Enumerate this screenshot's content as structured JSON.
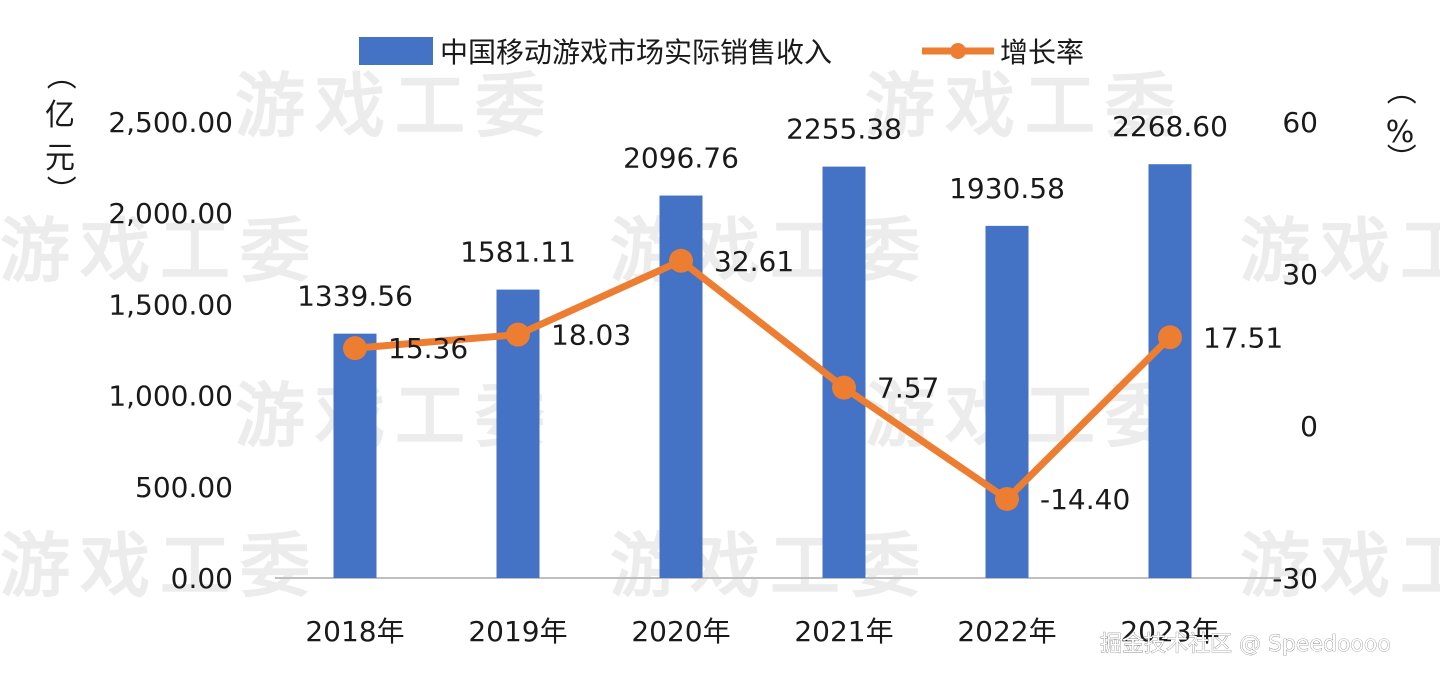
{
  "chart_data": {
    "type": "bar+line",
    "categories": [
      "2018年",
      "2019年",
      "2020年",
      "2021年",
      "2022年",
      "2023年"
    ],
    "series": [
      {
        "name": "中国移动游戏市场实际销售收入",
        "type": "bar",
        "axis": "left",
        "values": [
          1339.56,
          1581.11,
          2096.76,
          2255.38,
          1930.58,
          2268.6
        ],
        "labels": [
          "1339.56",
          "1581.11",
          "2096.76",
          "2255.38",
          "1930.58",
          "2268.60"
        ],
        "color": "#4472c4"
      },
      {
        "name": "增长率",
        "type": "line",
        "axis": "right",
        "values": [
          15.36,
          18.03,
          32.61,
          7.57,
          -14.4,
          17.51
        ],
        "labels": [
          "15.36",
          "18.03",
          "32.61",
          "7.57",
          "-14.40",
          "17.51"
        ],
        "color": "#ed7d31"
      }
    ],
    "y_left": {
      "unit_label": [
        "（",
        "亿",
        "元",
        "）"
      ],
      "ticks": [
        "0.00",
        "500.00",
        "1,000.00",
        "1,500.00",
        "2,000.00",
        "2,500.00"
      ],
      "ylim": [
        0,
        2500
      ]
    },
    "y_right": {
      "unit_label": [
        "（",
        "%",
        "）"
      ],
      "ticks": [
        "-30",
        "0",
        "30",
        "60"
      ],
      "ylim": [
        -30,
        60
      ]
    },
    "legend_position": "top-center",
    "grid": false
  },
  "watermark": "游戏工委",
  "credit": "掘金技术社区 @ Speedoooo"
}
